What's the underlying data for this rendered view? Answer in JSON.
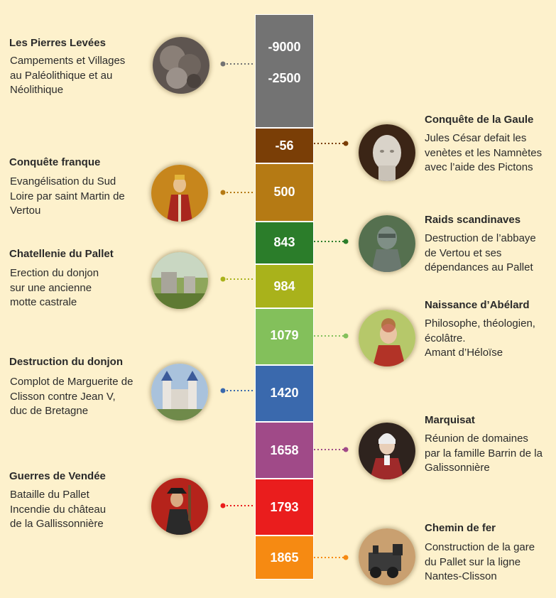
{
  "timeline": [
    {
      "id": "pierres",
      "years": [
        "-9000",
        "-2500"
      ],
      "color": "#737373",
      "side": "left",
      "title": "Les Pierres Levées",
      "desc": "Campements et Villages\nau Paléolithique et au\nNéolithique",
      "icon": "stones-icon"
    },
    {
      "id": "gaule",
      "years": [
        "-56"
      ],
      "color": "#7a3e06",
      "side": "right",
      "title": "Conquête de la Gaule",
      "desc": "Jules César defait les\nvenètes et les Namnètes\navec l’aide des Pictons",
      "icon": "caesar-bust-icon"
    },
    {
      "id": "franque",
      "years": [
        "500"
      ],
      "color": "#b57a14",
      "side": "left",
      "title": "Conquête franque",
      "desc": "Evangélisation du Sud\nLoire par saint Martin de\nVertou",
      "icon": "saint-martin-icon"
    },
    {
      "id": "raids",
      "years": [
        "843"
      ],
      "color": "#2b7d2a",
      "side": "right",
      "title": "Raids scandinaves",
      "desc": "Destruction de l’abbaye\nde Vertou et ses\ndépendances au Pallet",
      "icon": "viking-icon"
    },
    {
      "id": "chatellenie",
      "years": [
        "984"
      ],
      "color": "#a9b21b",
      "side": "left",
      "title": "Chatellenie du Pallet",
      "desc": "Erection du donjon\nsur une ancienne\nmotte castrale",
      "icon": "ruins-icon"
    },
    {
      "id": "abelard",
      "years": [
        "1079"
      ],
      "color": "#83c05b",
      "side": "right",
      "title": "Naissance d’Abélard",
      "desc": "Philosophe, théologien,\nécolâtre.\nAmant d’Héloïse",
      "icon": "abelard-icon"
    },
    {
      "id": "donjon",
      "years": [
        "1420"
      ],
      "color": "#3a69ad",
      "side": "left",
      "title": "Destruction du donjon",
      "desc": "Complot de Marguerite de\nClisson contre Jean V,\nduc de Bretagne",
      "icon": "castle-icon"
    },
    {
      "id": "marquisat",
      "years": [
        "1658"
      ],
      "color": "#a04a88",
      "side": "right",
      "title": "Marquisat",
      "desc": "Réunion de domaines\npar la famille Barrin de la\nGalissonnière",
      "icon": "marquis-portrait-icon"
    },
    {
      "id": "vendee",
      "years": [
        "1793"
      ],
      "color": "#ea1d1d",
      "side": "left",
      "title": "Guerres de Vendée",
      "desc": "Bataille du Pallet\nIncendie du château\nde la Gallissonnière",
      "icon": "vendee-soldier-icon"
    },
    {
      "id": "chemin",
      "years": [
        "1865"
      ],
      "color": "#f68a12",
      "side": "right",
      "title": "Chemin de fer",
      "desc": "Construction de la gare\ndu Pallet sur la ligne\nNantes-Clisson",
      "icon": "locomotive-icon"
    }
  ]
}
